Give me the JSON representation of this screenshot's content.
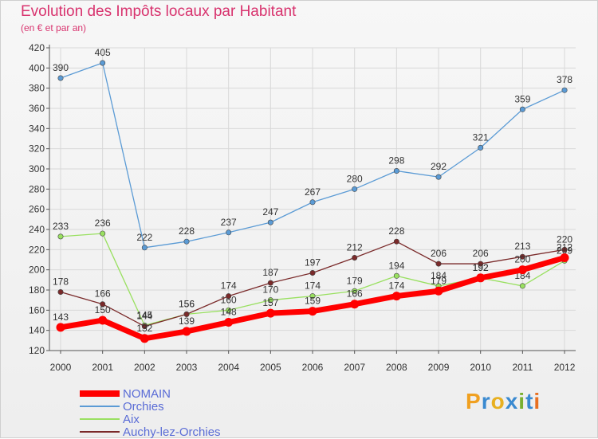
{
  "title": "Evolution des Impôts locaux par Habitant",
  "subtitle": "(en € et par an)",
  "logo": {
    "text": "Proxiti",
    "letters": [
      "P",
      "r",
      "o",
      "x",
      "i",
      "t",
      "i"
    ],
    "colors": [
      "#f0a020",
      "#3a8ad0",
      "#e8b020",
      "#3a8ad0",
      "#7ab030",
      "#3a8ad0",
      "#e87020"
    ]
  },
  "chart_data": {
    "type": "line",
    "categories": [
      "2000",
      "2001",
      "2002",
      "2003",
      "2004",
      "2005",
      "2006",
      "2007",
      "2008",
      "2009",
      "2010",
      "2011",
      "2012"
    ],
    "ylim": [
      120,
      420
    ],
    "yticks": [
      120,
      140,
      160,
      180,
      200,
      220,
      240,
      260,
      280,
      300,
      320,
      340,
      360,
      380,
      400,
      420
    ],
    "grid": true,
    "legend_position": "bottom-left",
    "series": [
      {
        "name": "Orchies",
        "color": "#5b9bd5",
        "values": [
          390,
          405,
          222,
          228,
          237,
          247,
          267,
          280,
          298,
          292,
          321,
          359,
          378
        ],
        "labels": [
          390,
          405,
          222,
          228,
          237,
          247,
          267,
          280,
          298,
          292,
          321,
          359,
          378
        ]
      },
      {
        "name": "Aix",
        "color": "#99e060",
        "values": [
          233,
          236,
          145,
          156,
          160,
          170,
          174,
          179,
          194,
          184,
          192,
          184,
          209
        ],
        "labels": [
          233,
          236,
          145,
          156,
          160,
          170,
          174,
          179,
          194,
          184,
          192,
          184,
          209
        ]
      },
      {
        "name": "Auchy-lez-Orchies",
        "color": "#7a2a2a",
        "values": [
          178,
          166,
          144,
          156,
          174,
          187,
          197,
          212,
          228,
          206,
          206,
          213,
          220
        ],
        "labels": [
          178,
          166,
          144,
          156,
          174,
          187,
          197,
          212,
          228,
          206,
          206,
          213,
          220
        ]
      },
      {
        "name": "NOMAIN",
        "color": "#ff0000",
        "values": [
          143,
          150,
          132,
          139,
          148,
          157,
          159,
          166,
          174,
          179,
          192,
          200,
          212
        ],
        "labels": [
          143,
          150,
          132,
          139,
          148,
          157,
          159,
          166,
          174,
          179,
          192,
          200,
          212
        ]
      }
    ],
    "legend_order": [
      "NOMAIN",
      "Orchies",
      "Aix",
      "Auchy-lez-Orchies"
    ]
  }
}
